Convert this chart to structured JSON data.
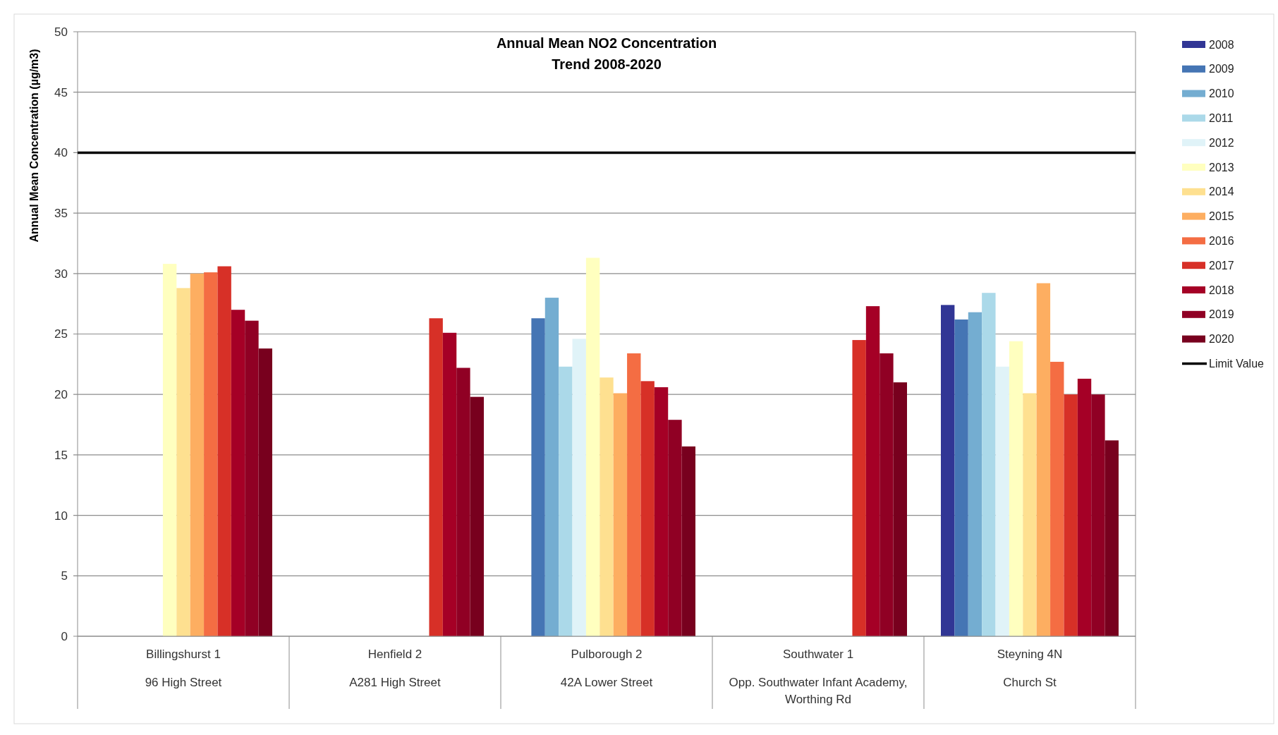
{
  "chart_data": {
    "type": "bar",
    "title": "Annual Mean NO2 Concentration",
    "subtitle": "Trend 2008-2020",
    "ylabel": "Annual Mean Concentration (µg/m3)",
    "categories": [
      "Billingshurst 1\n96 High Street",
      "Henfield 2\nA281 High Street",
      "Pulborough 2\n42A Lower Street",
      "Southwater 1\nOpp. Southwater Infant Academy, Worthing Rd",
      "Steyning 4N\nChurch St"
    ],
    "series": [
      {
        "name": "2008",
        "color": "#313695",
        "values": [
          null,
          null,
          null,
          null,
          27.4
        ]
      },
      {
        "name": "2009",
        "color": "#4575b4",
        "values": [
          null,
          null,
          26.3,
          null,
          26.2
        ]
      },
      {
        "name": "2010",
        "color": "#74add1",
        "values": [
          null,
          null,
          28.0,
          null,
          26.8
        ]
      },
      {
        "name": "2011",
        "color": "#abd9e9",
        "values": [
          null,
          null,
          22.3,
          null,
          28.4
        ]
      },
      {
        "name": "2012",
        "color": "#e0f3f8",
        "values": [
          null,
          null,
          24.6,
          null,
          22.3
        ]
      },
      {
        "name": "2013",
        "color": "#ffffbf",
        "values": [
          30.8,
          null,
          31.3,
          null,
          24.4
        ]
      },
      {
        "name": "2014",
        "color": "#fee090",
        "values": [
          28.8,
          null,
          21.4,
          null,
          20.1
        ]
      },
      {
        "name": "2015",
        "color": "#fdae61",
        "values": [
          30.0,
          null,
          20.1,
          null,
          29.2
        ]
      },
      {
        "name": "2016",
        "color": "#f46d43",
        "values": [
          30.1,
          null,
          23.4,
          null,
          22.7
        ]
      },
      {
        "name": "2017",
        "color": "#d73027",
        "values": [
          30.6,
          26.3,
          21.1,
          24.5,
          20.0
        ]
      },
      {
        "name": "2018",
        "color": "#a50026",
        "values": [
          27.0,
          25.1,
          20.6,
          27.3,
          21.3
        ]
      },
      {
        "name": "2019",
        "color": "#900024",
        "values": [
          26.1,
          22.2,
          17.9,
          23.4,
          20.0
        ]
      },
      {
        "name": "2020",
        "color": "#78001e",
        "values": [
          23.8,
          19.8,
          15.7,
          21.0,
          16.2
        ]
      }
    ],
    "ref_lines": [
      {
        "axis": "y",
        "value": 40,
        "label": "Limit Value",
        "color": "#000000"
      }
    ],
    "ylim": [
      0,
      50
    ],
    "yticks": [
      0,
      5,
      10,
      15,
      20,
      25,
      30,
      35,
      40,
      45,
      50
    ],
    "grid": "y",
    "legend": "right"
  }
}
